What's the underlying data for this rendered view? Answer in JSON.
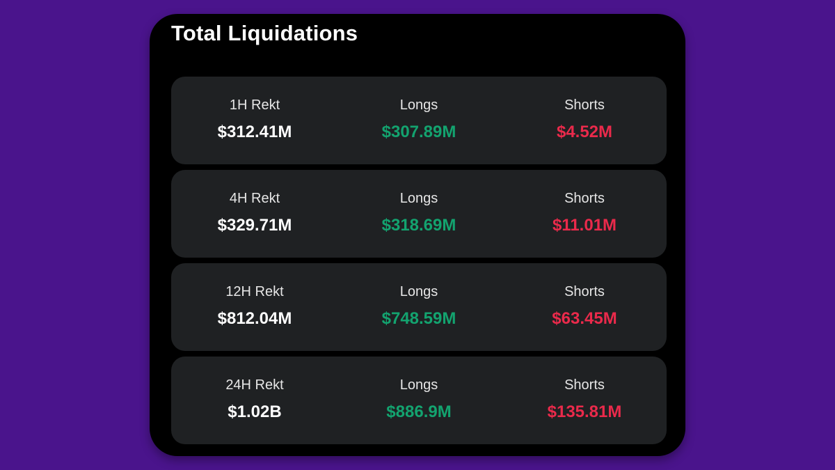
{
  "title": "Total Liquidations",
  "colors": {
    "background": "#4a148c",
    "card": "#000000",
    "row": "#1f2123",
    "long": "#13a36f",
    "short": "#ea2a4b"
  },
  "rows": [
    {
      "period_label": "1H Rekt",
      "total": "$312.41M",
      "longs_label": "Longs",
      "longs": "$307.89M",
      "shorts_label": "Shorts",
      "shorts": "$4.52M"
    },
    {
      "period_label": "4H Rekt",
      "total": "$329.71M",
      "longs_label": "Longs",
      "longs": "$318.69M",
      "shorts_label": "Shorts",
      "shorts": "$11.01M"
    },
    {
      "period_label": "12H Rekt",
      "total": "$812.04M",
      "longs_label": "Longs",
      "longs": "$748.59M",
      "shorts_label": "Shorts",
      "shorts": "$63.45M"
    },
    {
      "period_label": "24H Rekt",
      "total": "$1.02B",
      "longs_label": "Longs",
      "longs": "$886.9M",
      "shorts_label": "Shorts",
      "shorts": "$135.81M"
    }
  ]
}
